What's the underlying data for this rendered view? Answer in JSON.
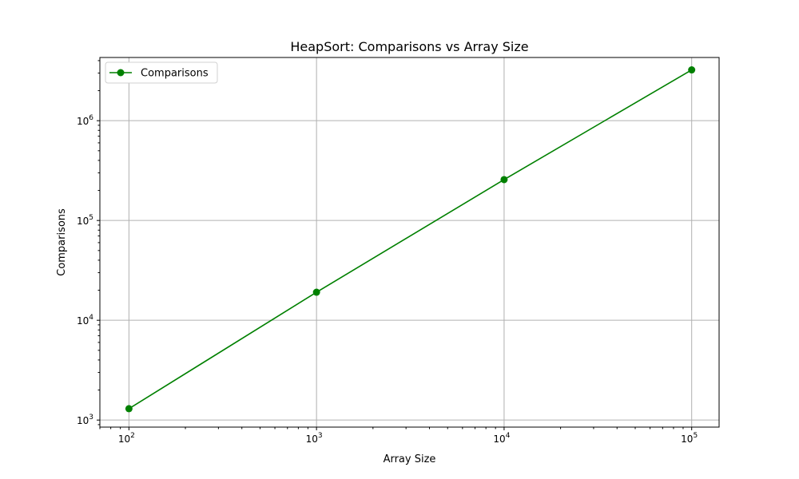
{
  "chart_data": {
    "type": "line",
    "title": "HeapSort: Comparisons vs Array Size",
    "xlabel": "Array Size",
    "ylabel": "Comparisons",
    "xscale": "log",
    "yscale": "log",
    "xlim": [
      70,
      140000
    ],
    "ylim": [
      850,
      4300000
    ],
    "x_ticks": [
      {
        "value": 100,
        "base": "10",
        "exp": "2"
      },
      {
        "value": 1000,
        "base": "10",
        "exp": "3"
      },
      {
        "value": 10000,
        "base": "10",
        "exp": "4"
      },
      {
        "value": 100000,
        "base": "10",
        "exp": "5"
      }
    ],
    "y_ticks": [
      {
        "value": 1000,
        "base": "10",
        "exp": "3"
      },
      {
        "value": 10000,
        "base": "10",
        "exp": "4"
      },
      {
        "value": 100000,
        "base": "10",
        "exp": "5"
      },
      {
        "value": 1000000,
        "base": "10",
        "exp": "6"
      }
    ],
    "grid": true,
    "legend_position": "top-left",
    "series": [
      {
        "name": "Comparisons",
        "color": "#008000",
        "marker": "circle",
        "x": [
          100,
          1000,
          10000,
          100000
        ],
        "y": [
          1300,
          19100,
          257000,
          3230000
        ]
      }
    ]
  }
}
